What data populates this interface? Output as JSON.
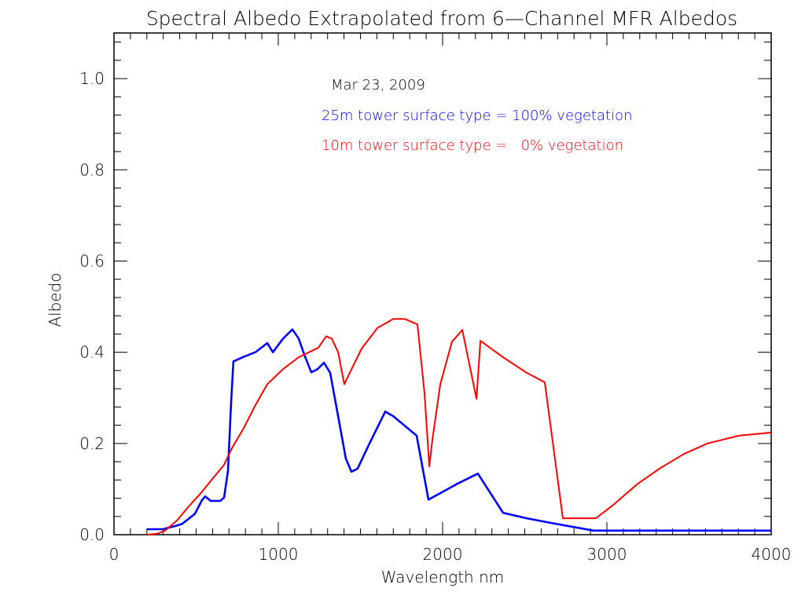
{
  "chart_data": {
    "type": "line",
    "title": "Spectral Albedo Extrapolated from 6—Channel MFR Albedos",
    "xlabel": "Wavelength nm",
    "ylabel": "Albedo",
    "xlim": [
      0,
      4000
    ],
    "ylim": [
      0,
      1.1
    ],
    "xticks": [
      0,
      1000,
      2000,
      3000,
      4000
    ],
    "xtick_labels": [
      "0",
      "1000",
      "2000",
      "3000",
      "4000"
    ],
    "yticks": [
      0.0,
      0.2,
      0.4,
      0.6,
      0.8,
      1.0
    ],
    "ytick_labels": [
      "0.0",
      "0.2",
      "0.4",
      "0.6",
      "0.8",
      "1.0"
    ],
    "x_minor_step": 100,
    "y_minor_step": 0.04,
    "grid": false,
    "annotations": {
      "date": "Mar 23, 2009",
      "legend_blue": "25m tower surface type = 100% vegetation",
      "legend_red": "10m tower surface type =   0% vegetation"
    },
    "series": [
      {
        "name": "25m tower surface type = 100% vegetation",
        "color": "#0000ff",
        "x": [
          200,
          297,
          383,
          416,
          493,
          536,
          555,
          589,
          646,
          670,
          694,
          713,
          727,
          790,
          861,
          933,
          967,
          1029,
          1086,
          1124,
          1163,
          1201,
          1239,
          1278,
          1316,
          1364,
          1411,
          1445,
          1483,
          1555,
          1651,
          1699,
          1842,
          1914,
          1986,
          2081,
          2215,
          2368,
          2512,
          2656,
          2919,
          4000
        ],
        "y": [
          0.012,
          0.012,
          0.02,
          0.024,
          0.046,
          0.076,
          0.084,
          0.074,
          0.074,
          0.081,
          0.14,
          0.29,
          0.38,
          0.39,
          0.4,
          0.42,
          0.4,
          0.43,
          0.45,
          0.43,
          0.39,
          0.356,
          0.363,
          0.377,
          0.355,
          0.26,
          0.167,
          0.138,
          0.145,
          0.2,
          0.27,
          0.26,
          0.217,
          0.077,
          0.091,
          0.11,
          0.134,
          0.048,
          0.036,
          0.026,
          0.009,
          0.009
        ]
      },
      {
        "name": "10m tower surface type = 0% vegetation",
        "color": "#ff0000",
        "x": [
          200,
          263,
          311,
          383,
          455,
          526,
          598,
          670,
          718,
          790,
          861,
          933,
          1029,
          1124,
          1244,
          1292,
          1325,
          1364,
          1402,
          1435,
          1507,
          1603,
          1699,
          1770,
          1847,
          1890,
          1919,
          1938,
          1986,
          2057,
          2120,
          2206,
          2230,
          2368,
          2512,
          2622,
          2732,
          2933,
          3038,
          3182,
          3325,
          3469,
          3612,
          3804,
          4000
        ],
        "y": [
          0,
          0.002,
          0.009,
          0.031,
          0.062,
          0.09,
          0.122,
          0.153,
          0.19,
          0.234,
          0.284,
          0.33,
          0.363,
          0.389,
          0.41,
          0.435,
          0.43,
          0.4,
          0.33,
          0.355,
          0.408,
          0.453,
          0.473,
          0.473,
          0.461,
          0.31,
          0.15,
          0.208,
          0.33,
          0.423,
          0.449,
          0.298,
          0.425,
          0.389,
          0.355,
          0.334,
          0.036,
          0.036,
          0.065,
          0.11,
          0.146,
          0.177,
          0.2,
          0.217,
          0.224
        ]
      }
    ]
  }
}
